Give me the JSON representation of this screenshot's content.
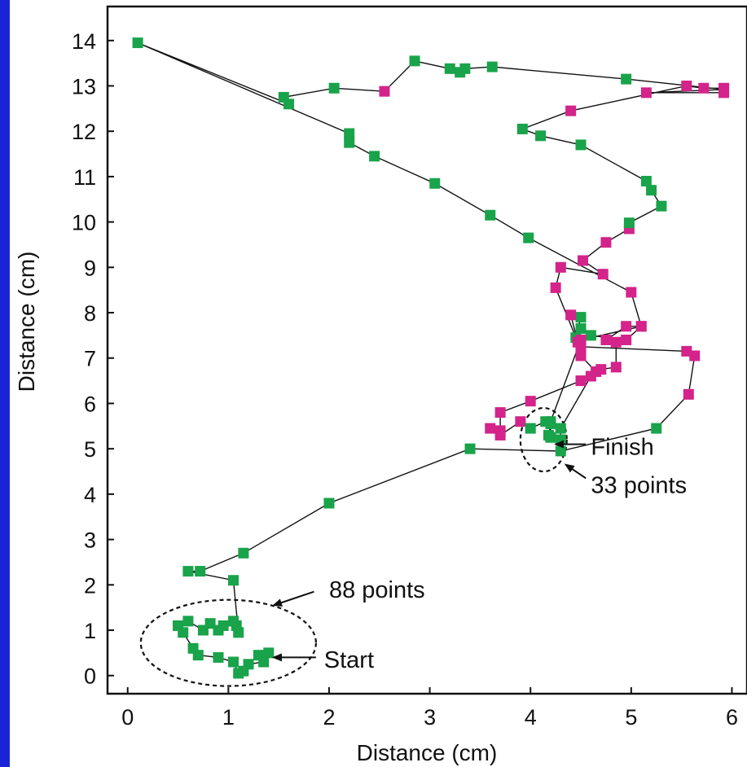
{
  "chart_data": {
    "type": "scatter",
    "title": "",
    "xlabel": "Distance (cm)",
    "ylabel": "Distance (cm)",
    "xlim": [
      -0.2,
      6.15
    ],
    "ylim": [
      -0.4,
      14.75
    ],
    "xticks": [
      "0",
      "1",
      "2",
      "3",
      "4",
      "5",
      "6"
    ],
    "yticks": [
      "0",
      "1",
      "2",
      "3",
      "4",
      "5",
      "6",
      "7",
      "8",
      "9",
      "10",
      "11",
      "12",
      "13",
      "14"
    ],
    "grid": false,
    "legend": "none",
    "colors": {
      "green": "#19a34a",
      "magenta": "#d4238a",
      "line": "#111111",
      "frame": "#1a24d4"
    },
    "path": [
      {
        "x": 1.4,
        "y": 0.5,
        "c": "green"
      },
      {
        "x": 1.3,
        "y": 0.45,
        "c": "green"
      },
      {
        "x": 1.35,
        "y": 0.3,
        "c": "green"
      },
      {
        "x": 1.2,
        "y": 0.25,
        "c": "green"
      },
      {
        "x": 1.15,
        "y": 0.1,
        "c": "green"
      },
      {
        "x": 1.1,
        "y": 0.05,
        "c": "green"
      },
      {
        "x": 1.05,
        "y": 0.3,
        "c": "green"
      },
      {
        "x": 0.9,
        "y": 0.4,
        "c": "green"
      },
      {
        "x": 0.7,
        "y": 0.45,
        "c": "green"
      },
      {
        "x": 0.65,
        "y": 0.6,
        "c": "green"
      },
      {
        "x": 0.55,
        "y": 0.95,
        "c": "green"
      },
      {
        "x": 0.5,
        "y": 1.1,
        "c": "green"
      },
      {
        "x": 0.6,
        "y": 1.2,
        "c": "green"
      },
      {
        "x": 0.75,
        "y": 1.0,
        "c": "green"
      },
      {
        "x": 0.82,
        "y": 1.15,
        "c": "green"
      },
      {
        "x": 0.9,
        "y": 1.0,
        "c": "green"
      },
      {
        "x": 0.95,
        "y": 1.1,
        "c": "green"
      },
      {
        "x": 1.08,
        "y": 1.1,
        "c": "green"
      },
      {
        "x": 1.05,
        "y": 1.2,
        "c": "green"
      },
      {
        "x": 1.1,
        "y": 0.95,
        "c": "green"
      },
      {
        "x": 1.05,
        "y": 2.1,
        "c": "green"
      },
      {
        "x": 0.6,
        "y": 2.3,
        "c": "green"
      },
      {
        "x": 0.72,
        "y": 2.3,
        "c": "green"
      },
      {
        "x": 1.15,
        "y": 2.7,
        "c": "green"
      },
      {
        "x": 2.0,
        "y": 3.8,
        "c": "green"
      },
      {
        "x": 3.4,
        "y": 5.0,
        "c": "green"
      },
      {
        "x": 4.3,
        "y": 4.95,
        "c": "green"
      },
      {
        "x": 5.25,
        "y": 5.45,
        "c": "green"
      },
      {
        "x": 5.57,
        "y": 6.2,
        "c": "magenta"
      },
      {
        "x": 5.63,
        "y": 7.05,
        "c": "magenta"
      },
      {
        "x": 5.55,
        "y": 7.15,
        "c": "magenta"
      },
      {
        "x": 4.5,
        "y": 7.25,
        "c": "magenta"
      },
      {
        "x": 4.5,
        "y": 7.05,
        "c": "magenta"
      },
      {
        "x": 4.65,
        "y": 6.7,
        "c": "magenta"
      },
      {
        "x": 4.5,
        "y": 6.5,
        "c": "magenta"
      },
      {
        "x": 4.0,
        "y": 6.05,
        "c": "magenta"
      },
      {
        "x": 3.7,
        "y": 5.8,
        "c": "magenta"
      },
      {
        "x": 3.7,
        "y": 5.4,
        "c": "magenta"
      },
      {
        "x": 3.6,
        "y": 5.45,
        "c": "magenta"
      },
      {
        "x": 3.7,
        "y": 5.3,
        "c": "magenta"
      },
      {
        "x": 3.9,
        "y": 5.6,
        "c": "magenta"
      },
      {
        "x": 4.0,
        "y": 5.45,
        "c": "green"
      },
      {
        "x": 4.15,
        "y": 5.6,
        "c": "green"
      },
      {
        "x": 4.2,
        "y": 5.55,
        "c": "green"
      },
      {
        "x": 4.18,
        "y": 5.3,
        "c": "green"
      },
      {
        "x": 4.3,
        "y": 5.2,
        "c": "green"
      },
      {
        "x": 4.3,
        "y": 5.45,
        "c": "green"
      },
      {
        "x": 4.6,
        "y": 6.6,
        "c": "magenta"
      },
      {
        "x": 4.7,
        "y": 6.75,
        "c": "magenta"
      },
      {
        "x": 4.85,
        "y": 6.8,
        "c": "magenta"
      },
      {
        "x": 4.85,
        "y": 7.35,
        "c": "magenta"
      },
      {
        "x": 4.75,
        "y": 7.4,
        "c": "magenta"
      },
      {
        "x": 4.95,
        "y": 7.7,
        "c": "magenta"
      },
      {
        "x": 5.1,
        "y": 7.7,
        "c": "magenta"
      },
      {
        "x": 4.95,
        "y": 7.4,
        "c": "magenta"
      },
      {
        "x": 4.6,
        "y": 7.5,
        "c": "green"
      },
      {
        "x": 4.5,
        "y": 7.65,
        "c": "green"
      },
      {
        "x": 4.45,
        "y": 7.45,
        "c": "green"
      },
      {
        "x": 4.5,
        "y": 7.9,
        "c": "green"
      },
      {
        "x": 4.4,
        "y": 7.95,
        "c": "magenta"
      },
      {
        "x": 4.47,
        "y": 7.35,
        "c": "magenta"
      },
      {
        "x": 4.25,
        "y": 8.55,
        "c": "magenta"
      },
      {
        "x": 4.3,
        "y": 9.0,
        "c": "magenta"
      },
      {
        "x": 4.72,
        "y": 8.85,
        "c": "magenta"
      },
      {
        "x": 4.52,
        "y": 9.15,
        "c": "magenta"
      },
      {
        "x": 4.75,
        "y": 9.55,
        "c": "magenta"
      },
      {
        "x": 4.98,
        "y": 9.85,
        "c": "magenta"
      },
      {
        "x": 4.98,
        "y": 9.98,
        "c": "green"
      },
      {
        "x": 5.3,
        "y": 10.35,
        "c": "green"
      },
      {
        "x": 5.2,
        "y": 10.7,
        "c": "green"
      },
      {
        "x": 5.15,
        "y": 10.9,
        "c": "green"
      },
      {
        "x": 4.5,
        "y": 11.7,
        "c": "green"
      },
      {
        "x": 4.1,
        "y": 11.9,
        "c": "green"
      },
      {
        "x": 3.92,
        "y": 12.05,
        "c": "green"
      },
      {
        "x": 4.4,
        "y": 12.45,
        "c": "magenta"
      },
      {
        "x": 5.55,
        "y": 13.0,
        "c": "magenta"
      },
      {
        "x": 5.72,
        "y": 12.95,
        "c": "magenta"
      },
      {
        "x": 5.92,
        "y": 12.95,
        "c": "magenta"
      },
      {
        "x": 5.92,
        "y": 12.85,
        "c": "magenta"
      },
      {
        "x": 5.15,
        "y": 12.85,
        "c": "magenta"
      },
      {
        "x": 5.92,
        "y": 12.92,
        "c": "magenta"
      },
      {
        "x": 4.95,
        "y": 13.15,
        "c": "green"
      },
      {
        "x": 3.62,
        "y": 13.42,
        "c": "green"
      },
      {
        "x": 3.35,
        "y": 13.38,
        "c": "green"
      },
      {
        "x": 3.3,
        "y": 13.3,
        "c": "green"
      },
      {
        "x": 3.2,
        "y": 13.38,
        "c": "green"
      },
      {
        "x": 2.85,
        "y": 13.55,
        "c": "green"
      },
      {
        "x": 2.55,
        "y": 12.88,
        "c": "magenta"
      },
      {
        "x": 2.05,
        "y": 12.95,
        "c": "green"
      },
      {
        "x": 1.55,
        "y": 12.75,
        "c": "green"
      },
      {
        "x": 1.6,
        "y": 12.6,
        "c": "green"
      },
      {
        "x": 0.1,
        "y": 13.95,
        "c": "green"
      },
      {
        "x": 2.2,
        "y": 11.95,
        "c": "green"
      },
      {
        "x": 2.2,
        "y": 11.75,
        "c": "green"
      },
      {
        "x": 2.45,
        "y": 11.45,
        "c": "green"
      },
      {
        "x": 3.05,
        "y": 10.85,
        "c": "green"
      },
      {
        "x": 3.6,
        "y": 10.15,
        "c": "green"
      },
      {
        "x": 3.98,
        "y": 9.65,
        "c": "green"
      },
      {
        "x": 5.0,
        "y": 8.45,
        "c": "magenta"
      },
      {
        "x": 5.1,
        "y": 7.7,
        "c": "magenta"
      },
      {
        "x": 4.5,
        "y": 7.4,
        "c": "magenta"
      },
      {
        "x": 4.2,
        "y": 5.6,
        "c": "green"
      },
      {
        "x": 4.2,
        "y": 5.25,
        "c": "green"
      }
    ],
    "annotations": [
      {
        "text": "88 points",
        "x": 2.0,
        "y": 1.9
      },
      {
        "text": "Start",
        "x": 1.95,
        "y": 0.35
      },
      {
        "text": "Finish",
        "x": 4.6,
        "y": 5.05
      },
      {
        "text": "33 points",
        "x": 4.6,
        "y": 4.2
      }
    ],
    "clusters": [
      {
        "label": "88 points",
        "cx": 1.0,
        "cy": 0.72,
        "rx": 0.87,
        "ry": 0.95
      },
      {
        "label": "33 points",
        "cx": 4.13,
        "cy": 5.2,
        "rx": 0.23,
        "ry": 0.7
      }
    ]
  }
}
